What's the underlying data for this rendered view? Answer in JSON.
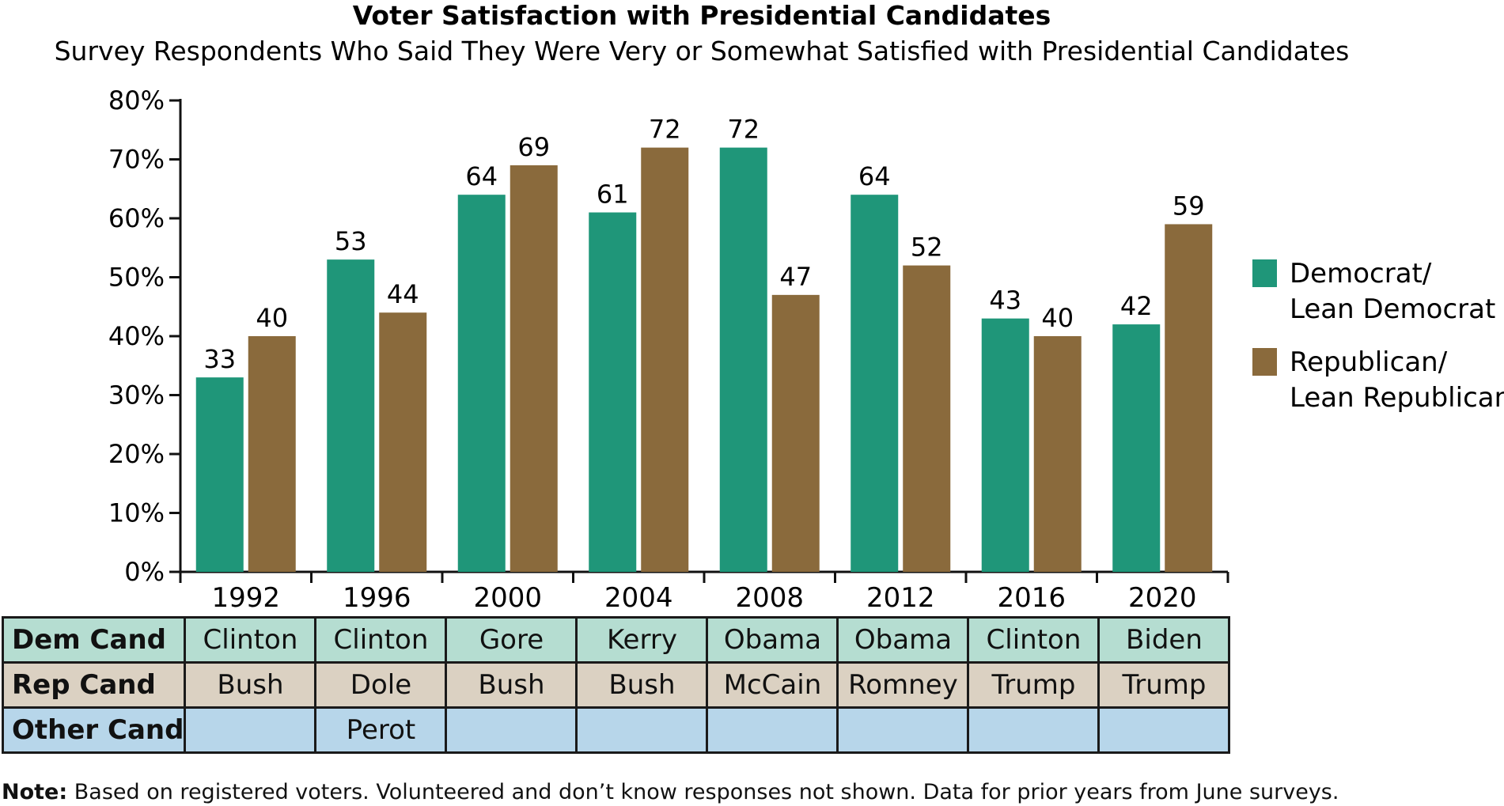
{
  "chart_data": {
    "type": "bar",
    "title": "Voter Satisfaction with Presidential Candidates",
    "subtitle": "Survey Respondents Who Said They Were Very or Somewhat Satisfied with Presidential Candidates",
    "categories": [
      "1992",
      "1996",
      "2000",
      "2004",
      "2008",
      "2012",
      "2016",
      "2020"
    ],
    "series": [
      {
        "name": "Democrat/ Lean Democrat",
        "name_lines": [
          "Democrat/",
          "Lean Democrat"
        ],
        "color": "#1f9679",
        "values": [
          33,
          53,
          64,
          61,
          72,
          64,
          43,
          42
        ]
      },
      {
        "name": "Republican/ Lean Republican",
        "name_lines": [
          "Republican/",
          "Lean Republican"
        ],
        "color": "#8a6a3c",
        "values": [
          40,
          44,
          69,
          72,
          47,
          52,
          40,
          59
        ]
      }
    ],
    "ylim": [
      0,
      80
    ],
    "yticks": [
      "0%",
      "10%",
      "20%",
      "30%",
      "40%",
      "50%",
      "60%",
      "70%",
      "80%"
    ],
    "legend_position": "right",
    "grid": false
  },
  "table": {
    "rows": [
      {
        "label": "Dem Cand",
        "cells": [
          "Clinton",
          "Clinton",
          "Gore",
          "Kerry",
          "Obama",
          "Obama",
          "Clinton",
          "Biden"
        ]
      },
      {
        "label": "Rep Cand",
        "cells": [
          "Bush",
          "Dole",
          "Bush",
          "Bush",
          "McCain",
          "Romney",
          "Trump",
          "Trump"
        ]
      },
      {
        "label": "Other Cand",
        "cells": [
          "",
          "Perot",
          "",
          "",
          "",
          "",
          "",
          ""
        ]
      }
    ]
  },
  "note": {
    "label": "Note:",
    "text": " Based on registered voters. Volunteered and don’t know responses not shown. Data for prior years from June surveys."
  }
}
